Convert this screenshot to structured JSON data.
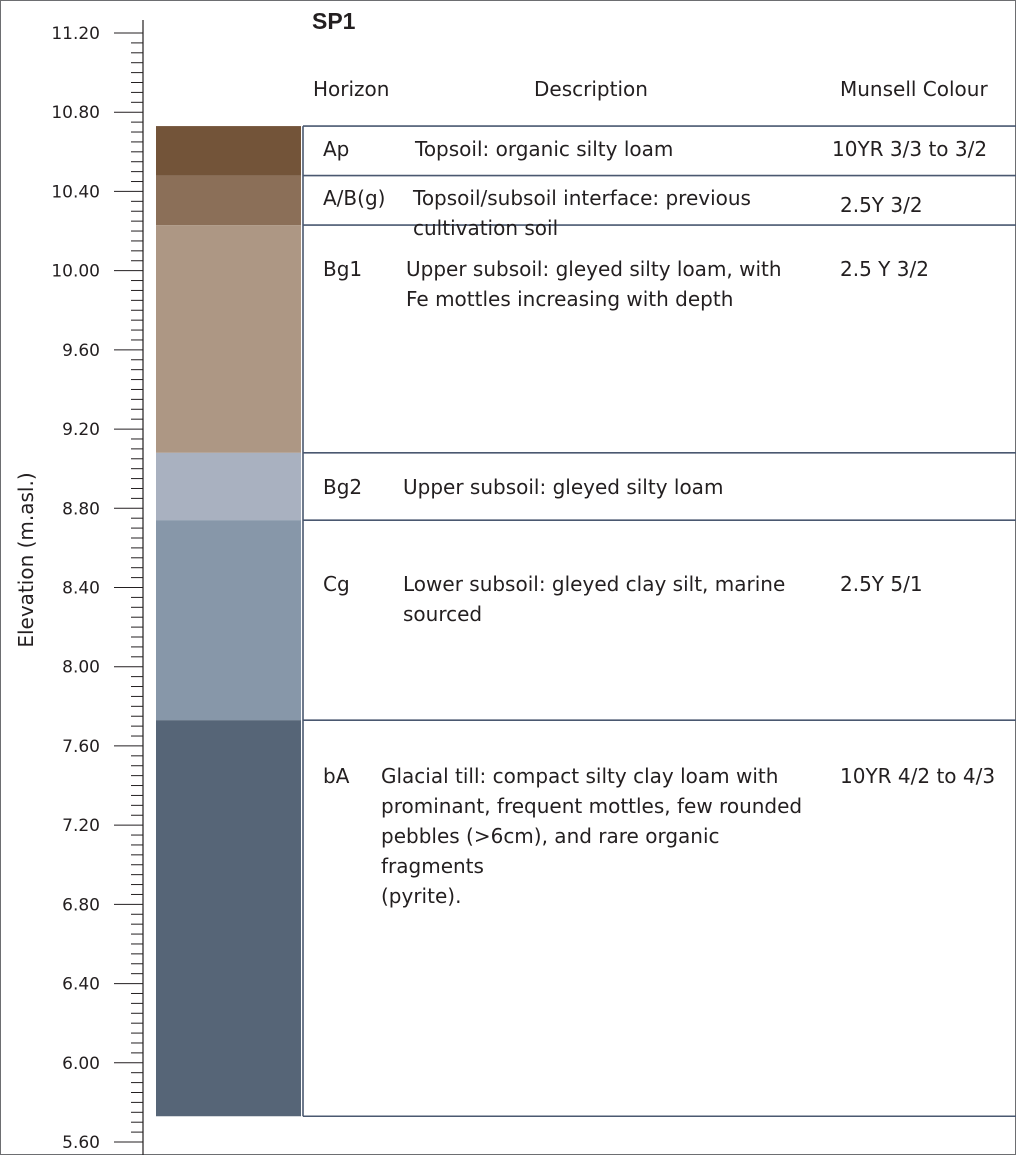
{
  "title": "SP1",
  "headers": {
    "horizon": "Horizon",
    "description": "Description",
    "munsell": "Munsell Colour"
  },
  "axis": {
    "label": "Elevation (m.asl.)",
    "range": [
      5.6,
      11.2
    ],
    "major_step": 0.4,
    "minor_step": 0.05,
    "ticks": [
      "11.20",
      "10.80",
      "10.40",
      "10.00",
      "9.60",
      "9.20",
      "8.80",
      "8.40",
      "8.00",
      "7.60",
      "7.20",
      "6.80",
      "6.40",
      "6.00",
      "5.60"
    ]
  },
  "layers": [
    {
      "horizon": "Ap",
      "top": 10.73,
      "bottom": 10.48,
      "fill": "#735439",
      "description": [
        "Topsoil: organic silty loam"
      ],
      "munsell": "10YR 3/3 to 3/2"
    },
    {
      "horizon": "A/B(g)",
      "top": 10.48,
      "bottom": 10.23,
      "fill": "#8b6f58",
      "description": [
        "Topsoil/subsoil interface: previous",
        "cultivation soil"
      ],
      "munsell": "2.5Y 3/2"
    },
    {
      "horizon": "Bg1",
      "top": 10.23,
      "bottom": 9.08,
      "fill": "#ad9784",
      "description": [
        "Upper subsoil: gleyed silty loam, with",
        "Fe mottles increasing with depth"
      ],
      "munsell": "2.5 Y 3/2"
    },
    {
      "horizon": "Bg2",
      "top": 9.08,
      "bottom": 8.74,
      "fill": "#a9b1c0",
      "description": [
        "Upper subsoil: gleyed silty loam"
      ],
      "munsell": ""
    },
    {
      "horizon": "Cg",
      "top": 8.74,
      "bottom": 7.73,
      "fill": "#8797a9",
      "description": [
        "Lower subsoil: gleyed clay silt, marine",
        "sourced"
      ],
      "munsell": "2.5Y 5/1"
    },
    {
      "horizon": "bA",
      "top": 7.73,
      "bottom": 5.73,
      "fill": "#566577",
      "description": [
        "Glacial till: compact silty clay loam with",
        "prominant, frequent mottles, few rounded",
        "pebbles (>6cm), and rare organic fragments",
        "(pyrite)."
      ],
      "munsell": "10YR 4/2 to 4/3"
    }
  ],
  "colors": {
    "axis": "#231f20",
    "rule": "#4a5870",
    "border": "#6d6e71"
  }
}
